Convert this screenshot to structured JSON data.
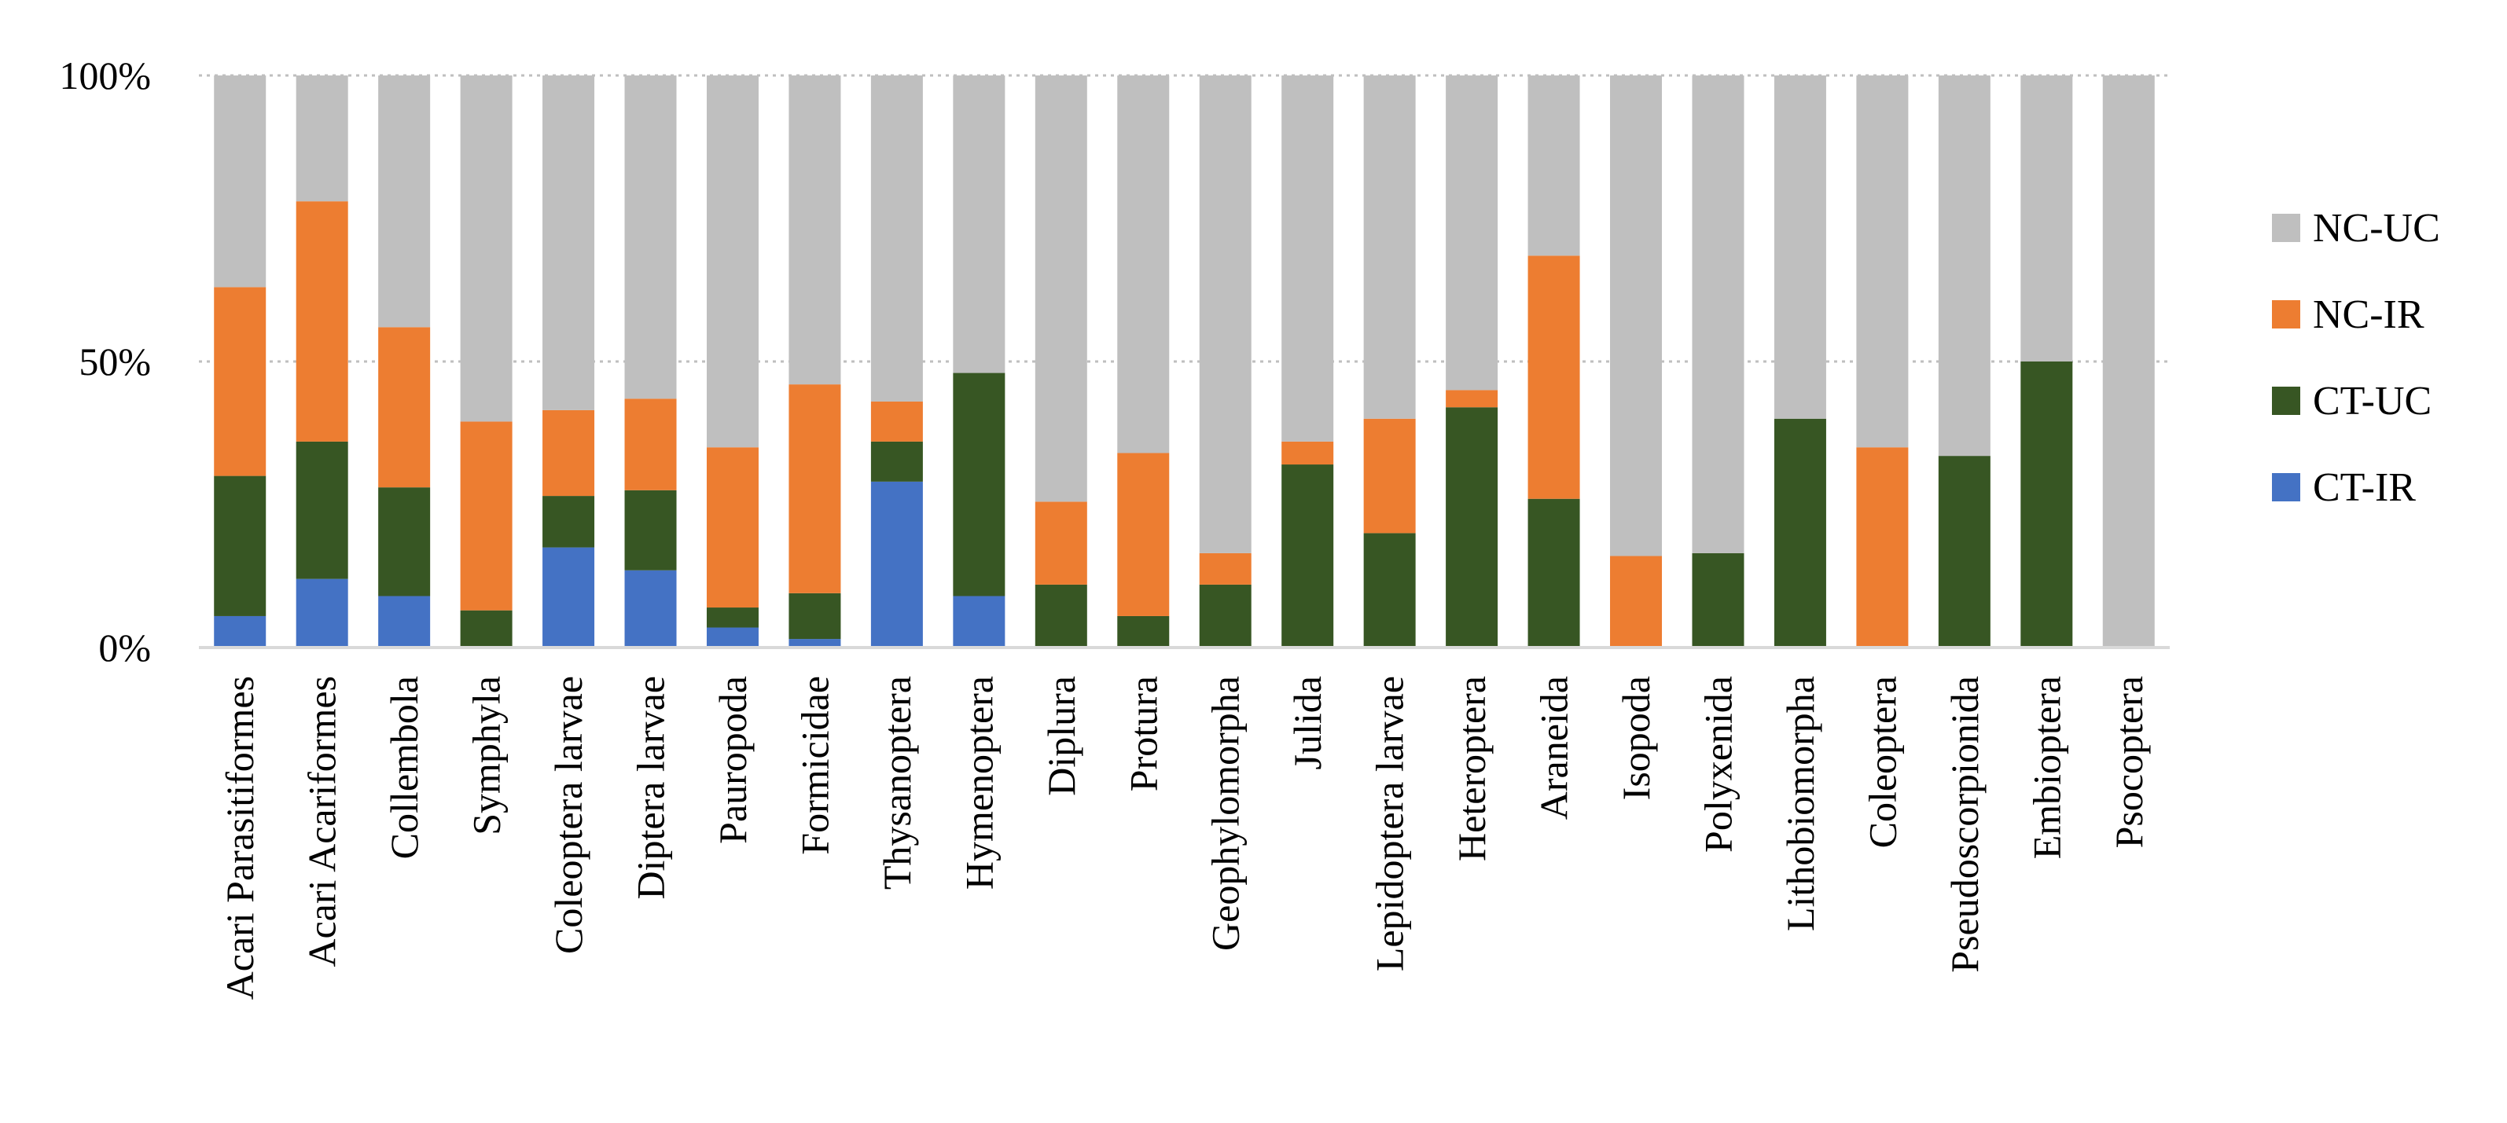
{
  "chart_data": {
    "type": "bar",
    "stacked": true,
    "percent": true,
    "title": "",
    "xlabel": "",
    "ylabel": "",
    "ylim": [
      0,
      100
    ],
    "y_ticks": [
      {
        "value": 0,
        "label": "0%"
      },
      {
        "value": 50,
        "label": "50%"
      },
      {
        "value": 100,
        "label": "100%"
      }
    ],
    "grid": true,
    "legend_position": "right",
    "categories": [
      "Acari Parasitiformes",
      "Acari Acariformes",
      "Collembola",
      "Symphyla",
      "Coleoptera larvae",
      "Diptera larvae",
      "Pauropoda",
      "Formicidae",
      "Thysanoptera",
      "Hymenoptera",
      "Diplura",
      "Protura",
      "Geophylomorpha",
      "Julida",
      "Lepidoptera larvae",
      "Heteroptera",
      "Araneida",
      "Isopoda",
      "Polyxenida",
      "Lithobiomorpha",
      "Coleoptera",
      "Pseudoscorpionida",
      "Embioptera",
      "Psocoptera"
    ],
    "series": [
      {
        "name": "CT-IR",
        "color": "#4472C4",
        "values": [
          5.5,
          12,
          9,
          0,
          17.5,
          13.5,
          3.5,
          1.5,
          29,
          9,
          0,
          0,
          0,
          0,
          0,
          0,
          0,
          0,
          0,
          0,
          0,
          0,
          0,
          0
        ]
      },
      {
        "name": "CT-UC",
        "color": "#375623",
        "values": [
          24.5,
          24,
          19,
          6.5,
          9,
          14,
          3.5,
          8,
          7,
          39,
          11,
          5.5,
          11,
          32,
          20,
          42,
          26,
          0,
          16.5,
          40,
          0,
          33.5,
          50,
          0
        ]
      },
      {
        "name": "NC-IR",
        "color": "#ED7D31",
        "values": [
          33,
          42,
          28,
          33,
          15,
          16,
          28,
          36.5,
          7,
          0,
          14.5,
          28.5,
          5.5,
          4,
          20,
          3,
          42.5,
          16,
          0,
          0,
          35,
          0,
          0,
          0
        ]
      },
      {
        "name": "NC-UC",
        "color": "#BFBFBF",
        "values": [
          37,
          22,
          44,
          60.5,
          58.5,
          56.5,
          65,
          54,
          57,
          52,
          74.5,
          66,
          83.5,
          64,
          60,
          55,
          31.5,
          84,
          83.5,
          60,
          65,
          66.5,
          50,
          100
        ]
      }
    ],
    "legend_order": [
      "NC-UC",
      "NC-IR",
      "CT-UC",
      "CT-IR"
    ]
  }
}
